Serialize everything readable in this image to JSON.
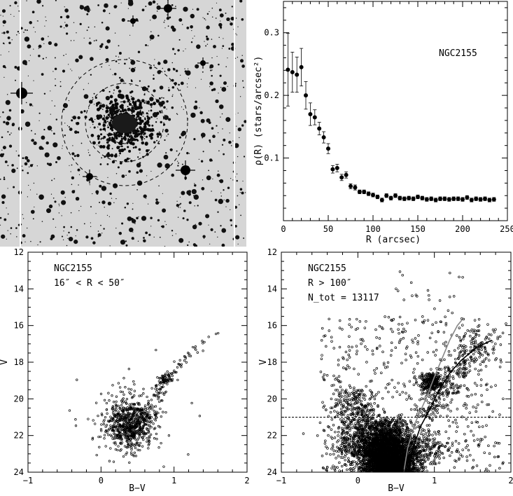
{
  "chart_data": [
    {
      "type": "image",
      "panel": "top-left",
      "description_visible": "greyscale sky field with concentric dashed circles",
      "circle_radii_arcsec": [
        16,
        50,
        100
      ]
    },
    {
      "type": "scatter",
      "panel": "top-right",
      "annotation": "NGC2155",
      "xlabel": "R (arcsec)",
      "ylabel": "ρ(R) (stars/arcsec²)",
      "xlim": [
        0,
        250
      ],
      "ylim": [
        0,
        0.35
      ],
      "x_ticks": [
        0,
        50,
        100,
        150,
        200,
        250
      ],
      "y_ticks": [
        0.1,
        0.2,
        0.3
      ],
      "y_tick_labels": [
        "0.1",
        "0.2",
        "0.3"
      ],
      "series": [
        {
          "x": [
            5,
            10,
            15,
            20,
            25,
            30,
            35,
            40,
            45,
            50,
            55,
            60,
            65,
            70,
            75,
            80,
            85,
            90,
            95,
            100,
            105,
            110,
            115,
            120,
            125,
            130,
            135,
            140,
            145,
            150,
            155,
            160,
            165,
            170,
            175,
            180,
            185,
            190,
            195,
            200,
            205,
            210,
            215,
            220,
            225,
            230,
            235
          ],
          "y": [
            0.241,
            0.237,
            0.233,
            0.245,
            0.2,
            0.17,
            0.165,
            0.147,
            0.133,
            0.115,
            0.082,
            0.084,
            0.069,
            0.073,
            0.055,
            0.053,
            0.046,
            0.046,
            0.043,
            0.041,
            0.038,
            0.033,
            0.04,
            0.036,
            0.04,
            0.036,
            0.035,
            0.036,
            0.035,
            0.038,
            0.036,
            0.034,
            0.035,
            0.033,
            0.035,
            0.035,
            0.034,
            0.035,
            0.035,
            0.034,
            0.037,
            0.033,
            0.035,
            0.034,
            0.035,
            0.033,
            0.034
          ],
          "err": [
            0.058,
            0.032,
            0.028,
            0.03,
            0.022,
            0.018,
            0.012,
            0.01,
            0.009,
            0.008,
            0.006,
            0.006,
            0.005,
            0.005,
            0.004,
            0.004,
            0.003,
            0.003,
            0.003,
            0.003,
            0.003,
            0.003,
            0.003,
            0.003,
            0.003,
            0.003,
            0.003,
            0.003,
            0.003,
            0.003,
            0.003,
            0.003,
            0.003,
            0.003,
            0.003,
            0.003,
            0.003,
            0.003,
            0.003,
            0.003,
            0.003,
            0.003,
            0.003,
            0.003,
            0.003,
            0.003,
            0.003
          ]
        }
      ]
    },
    {
      "type": "scatter",
      "panel": "bottom-left",
      "annotation_lines": [
        "NGC2155",
        "16″ < R < 50″"
      ],
      "xlabel": "B−V",
      "ylabel": "V",
      "xlim": [
        -1,
        2
      ],
      "ylim": [
        24,
        12
      ],
      "x_ticks": [
        -1,
        0,
        1,
        2
      ],
      "y_ticks": [
        12,
        14,
        16,
        18,
        20,
        22,
        24
      ],
      "y_axis_inverted": true,
      "approx_points": 900
    },
    {
      "type": "scatter",
      "panel": "bottom-right",
      "annotation_lines": [
        "NGC2155",
        "R > 100″",
        "N_tot = 13117"
      ],
      "xlabel": "B−V",
      "ylabel": "V",
      "xlim": [
        -1,
        2
      ],
      "ylim": [
        24,
        12
      ],
      "x_ticks": [
        -1,
        0,
        1,
        2
      ],
      "y_ticks": [
        12,
        14,
        16,
        18,
        20,
        22,
        24
      ],
      "y_axis_inverted": true,
      "horizontal_line_V": 21,
      "approx_points": 13117,
      "curves": [
        {
          "color": "#888888",
          "points": [
            [
              0.6,
              24.0
            ],
            [
              0.65,
              22.7
            ],
            [
              0.75,
              21.3
            ],
            [
              0.9,
              19.9
            ],
            [
              1.0,
              18.8
            ],
            [
              1.1,
              17.8
            ],
            [
              1.2,
              16.8
            ],
            [
              1.3,
              16.0
            ],
            [
              1.36,
              15.7
            ]
          ]
        },
        {
          "color": "#000000",
          "points": [
            [
              0.66,
              24.0
            ],
            [
              0.72,
              22.7
            ],
            [
              0.82,
              21.5
            ],
            [
              0.95,
              20.5
            ],
            [
              1.05,
              19.6
            ],
            [
              1.2,
              18.6
            ],
            [
              1.35,
              17.9
            ],
            [
              1.55,
              17.2
            ],
            [
              1.75,
              16.8
            ]
          ]
        }
      ]
    }
  ]
}
